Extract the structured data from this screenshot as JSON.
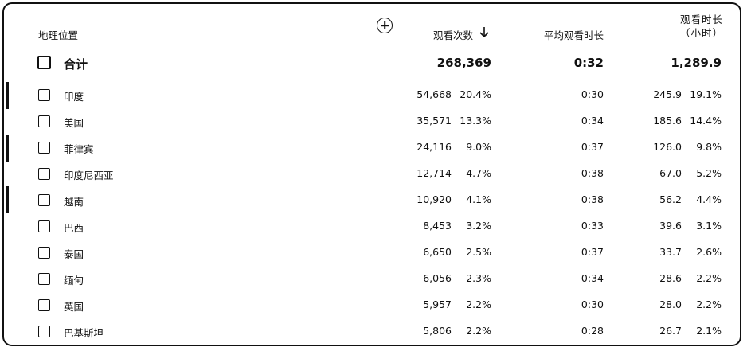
{
  "header": {
    "geo_label": "地理位置",
    "views_label": "观看次数",
    "avg_label": "平均观看时长",
    "watch_label": "观看时长（小时）"
  },
  "total": {
    "name": "合计",
    "views": "268,369",
    "avg": "0:32",
    "hours": "1,289.9"
  },
  "rows": [
    {
      "name": "印度",
      "views": "54,668",
      "pct": "20.4%",
      "avg": "0:30",
      "hours": "245.9",
      "hpct": "19.1%"
    },
    {
      "name": "美国",
      "views": "35,571",
      "pct": "13.3%",
      "avg": "0:34",
      "hours": "185.6",
      "hpct": "14.4%"
    },
    {
      "name": "菲律宾",
      "views": "24,116",
      "pct": "9.0%",
      "avg": "0:37",
      "hours": "126.0",
      "hpct": "9.8%"
    },
    {
      "name": "印度尼西亚",
      "views": "12,714",
      "pct": "4.7%",
      "avg": "0:38",
      "hours": "67.0",
      "hpct": "5.2%"
    },
    {
      "name": "越南",
      "views": "10,920",
      "pct": "4.1%",
      "avg": "0:38",
      "hours": "56.2",
      "hpct": "4.4%"
    },
    {
      "name": "巴西",
      "views": "8,453",
      "pct": "3.2%",
      "avg": "0:33",
      "hours": "39.6",
      "hpct": "3.1%"
    },
    {
      "name": "泰国",
      "views": "6,650",
      "pct": "2.5%",
      "avg": "0:37",
      "hours": "33.7",
      "hpct": "2.6%"
    },
    {
      "name": "缅甸",
      "views": "6,056",
      "pct": "2.3%",
      "avg": "0:34",
      "hours": "28.6",
      "hpct": "2.2%"
    },
    {
      "name": "英国",
      "views": "5,957",
      "pct": "2.2%",
      "avg": "0:30",
      "hours": "28.0",
      "hpct": "2.2%"
    },
    {
      "name": "巴基斯坦",
      "views": "5,806",
      "pct": "2.2%",
      "avg": "0:28",
      "hours": "26.7",
      "hpct": "2.1%"
    }
  ]
}
